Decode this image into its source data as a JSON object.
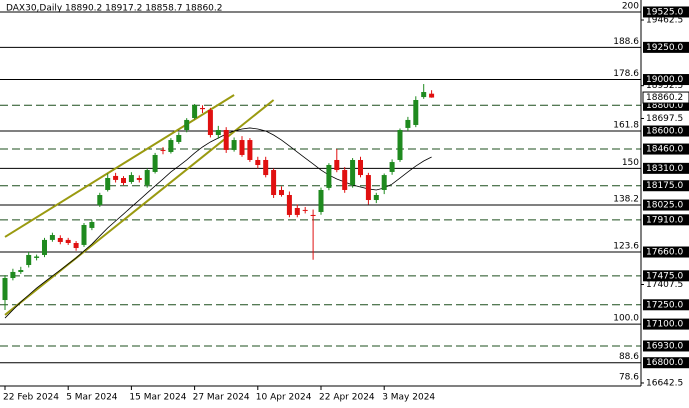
{
  "chart_data": {
    "type": "candlestick",
    "title": "DAX30,Daily  18890.2 18917.2 18858.7 18860.2",
    "categories": [
      "22 Feb 2024",
      null,
      null,
      null,
      null,
      null,
      null,
      null,
      "5 Mar 2024",
      null,
      null,
      null,
      null,
      null,
      null,
      null,
      "15 Mar 2024",
      null,
      null,
      null,
      null,
      null,
      null,
      null,
      "27 Mar 2024",
      null,
      null,
      null,
      null,
      null,
      null,
      null,
      "10 Apr 2024",
      null,
      null,
      null,
      null,
      null,
      null,
      null,
      "22 Apr 2024",
      null,
      null,
      null,
      null,
      null,
      null,
      null,
      "3 May 2024",
      null,
      null,
      null,
      null,
      null,
      null
    ],
    "up_color": "#1f8a1f",
    "down_color": "#e01010",
    "candles": [
      [
        17287,
        17480,
        17209,
        17458
      ],
      [
        17458,
        17530,
        17440,
        17505
      ],
      [
        17505,
        17545,
        17490,
        17520
      ],
      [
        17559,
        17660,
        17540,
        17637
      ],
      [
        17614,
        17640,
        17595,
        17625
      ],
      [
        17637,
        17770,
        17620,
        17754
      ],
      [
        17754,
        17810,
        17740,
        17792
      ],
      [
        17769,
        17790,
        17720,
        17738
      ],
      [
        17754,
        17770,
        17715,
        17730
      ],
      [
        17730,
        17745,
        17670,
        17691
      ],
      [
        17715,
        17885,
        17700,
        17870
      ],
      [
        17847,
        17910,
        17830,
        17893
      ],
      [
        18025,
        18120,
        18010,
        18103
      ],
      [
        18142,
        18270,
        18130,
        18235
      ],
      [
        18251,
        18275,
        18200,
        18220
      ],
      [
        18235,
        18250,
        18180,
        18196
      ],
      [
        18204,
        18280,
        18190,
        18258
      ],
      [
        18235,
        18255,
        18200,
        18220
      ],
      [
        18181,
        18310,
        18160,
        18297
      ],
      [
        18282,
        18430,
        18270,
        18414
      ],
      [
        18453,
        18475,
        18420,
        18450
      ],
      [
        18437,
        18545,
        18425,
        18530
      ],
      [
        18515,
        18590,
        18500,
        18569
      ],
      [
        18608,
        18700,
        18590,
        18686
      ],
      [
        18701,
        18810,
        18690,
        18802
      ],
      [
        18779,
        18800,
        18740,
        18770
      ],
      [
        18763,
        18780,
        18550,
        18569
      ],
      [
        18569,
        18640,
        18540,
        18608
      ],
      [
        18608,
        18630,
        18430,
        18453
      ],
      [
        18453,
        18550,
        18440,
        18530
      ],
      [
        18530,
        18560,
        18400,
        18414
      ],
      [
        18530,
        18545,
        18360,
        18375
      ],
      [
        18375,
        18400,
        18310,
        18336
      ],
      [
        18375,
        18400,
        18240,
        18258
      ],
      [
        18297,
        18310,
        18080,
        18103
      ],
      [
        18142,
        18170,
        18090,
        18103
      ],
      [
        18103,
        18130,
        17930,
        17948
      ],
      [
        18002,
        18030,
        17930,
        17948
      ],
      [
        17987,
        18010,
        17960,
        17980
      ],
      [
        17948,
        17990,
        17600,
        17940
      ],
      [
        17971,
        18160,
        17950,
        18142
      ],
      [
        18158,
        18350,
        18140,
        18336
      ],
      [
        18375,
        18460,
        18280,
        18297
      ],
      [
        18297,
        18320,
        18120,
        18142
      ],
      [
        18181,
        18390,
        18160,
        18375
      ],
      [
        18375,
        18400,
        18240,
        18258
      ],
      [
        18258,
        18275,
        18030,
        18064
      ],
      [
        18064,
        18120,
        18040,
        18103
      ],
      [
        18142,
        18270,
        18110,
        18258
      ],
      [
        18282,
        18380,
        18260,
        18359
      ],
      [
        18375,
        18620,
        18360,
        18608
      ],
      [
        18624,
        18710,
        18600,
        18686
      ],
      [
        18647,
        18870,
        18630,
        18841
      ],
      [
        18864,
        18965,
        18850,
        18903
      ],
      [
        18890.2,
        18917.2,
        18858.7,
        18860.2
      ]
    ],
    "ma": {
      "color": "#000000",
      "values": [
        17147,
        17210,
        17272,
        17326,
        17380,
        17427,
        17474,
        17520,
        17567,
        17614,
        17668,
        17722,
        17785,
        17847,
        17901,
        17955,
        18010,
        18064,
        18119,
        18173,
        18227,
        18282,
        18328,
        18375,
        18429,
        18476,
        18515,
        18546,
        18577,
        18600,
        18616,
        18624,
        18616,
        18600,
        18569,
        18530,
        18484,
        18437,
        18390,
        18344,
        18297,
        18258,
        18227,
        18204,
        18181,
        18165,
        18150,
        18142,
        18158,
        18188,
        18235,
        18282,
        18328,
        18367,
        18398
      ]
    },
    "trendlines": {
      "color": "#9a9a10",
      "lines": [
        {
          "x": [
            0,
            29
          ],
          "y": [
            17777,
            18880
          ]
        },
        {
          "x": [
            0,
            34
          ],
          "y": [
            17171,
            18841
          ]
        }
      ]
    },
    "ylim": [
      16619,
      19618
    ],
    "yticks": [
      {
        "value": 19462.5,
        "label": "19462.5"
      },
      {
        "value": 18952.5,
        "label": "18952.5"
      },
      {
        "value": 18697.5,
        "label": "18697.5"
      },
      {
        "value": 17407.5,
        "label": "17407.5"
      },
      {
        "value": 16642.5,
        "label": "16642.5"
      }
    ],
    "levels": [
      {
        "value": 19525,
        "label": "19525.0",
        "style": "solid"
      },
      {
        "value": 19250,
        "label": "19250.0",
        "style": "solid"
      },
      {
        "value": 19000,
        "label": "19000.0",
        "style": "solid"
      },
      {
        "value": 18800,
        "label": "18800.0",
        "style": "dashed"
      },
      {
        "value": 18600,
        "label": "18600.0",
        "style": "solid"
      },
      {
        "value": 18460,
        "label": "18460.0",
        "style": "dashed"
      },
      {
        "value": 18310,
        "label": "18310.0",
        "style": "solid"
      },
      {
        "value": 18175,
        "label": "18175.0",
        "style": "dashed"
      },
      {
        "value": 18025,
        "label": "18025.0",
        "style": "solid"
      },
      {
        "value": 17910,
        "label": "17910.0",
        "style": "dashed"
      },
      {
        "value": 17660,
        "label": "17660.0",
        "style": "solid"
      },
      {
        "value": 17475,
        "label": "17475.0",
        "style": "dashed"
      },
      {
        "value": 17250,
        "label": "17250.0",
        "style": "dashed"
      },
      {
        "value": 17100,
        "label": "17100.0",
        "style": "solid"
      },
      {
        "value": 16930,
        "label": "16930.0",
        "style": "dashed"
      },
      {
        "value": 16800,
        "label": "16800.0",
        "style": "solid"
      }
    ],
    "fib_labels": [
      {
        "value": 19525,
        "label": "200"
      },
      {
        "value": 19250,
        "label": "188.6"
      },
      {
        "value": 19000,
        "label": "178.6"
      },
      {
        "value": 18600,
        "label": "161.8"
      },
      {
        "value": 18310,
        "label": "150"
      },
      {
        "value": 18025,
        "label": "138.2"
      },
      {
        "value": 17660,
        "label": "123.6"
      },
      {
        "value": 17100,
        "label": "100.0"
      },
      {
        "value": 16800,
        "label": "88.6"
      },
      {
        "value": 16642.5,
        "label": "78.6"
      }
    ],
    "last_price": {
      "value": 18860.2,
      "label": "18860.2"
    }
  }
}
